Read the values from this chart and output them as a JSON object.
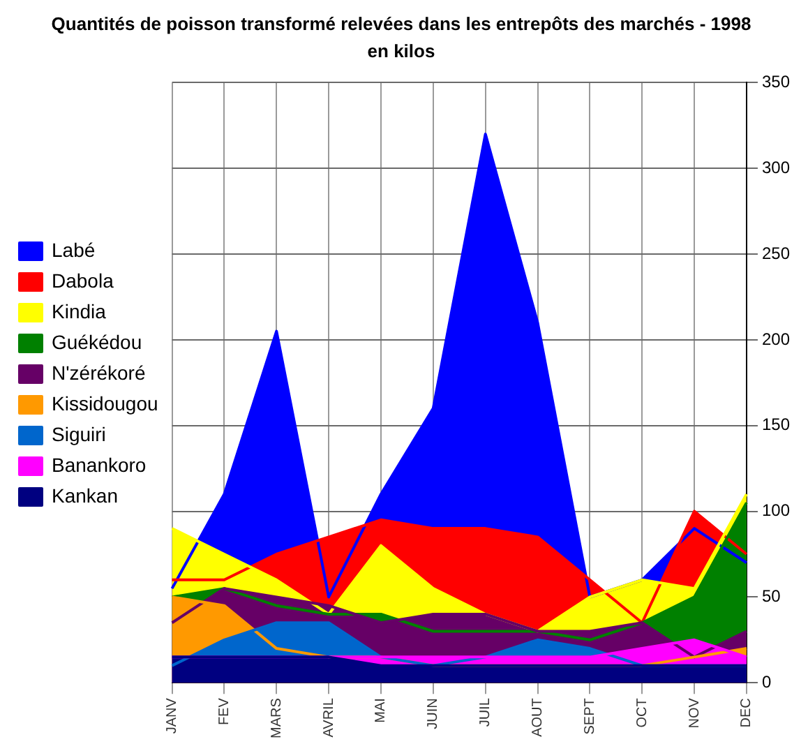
{
  "chart_data": {
    "type": "area",
    "title": "Quantités de poisson transformé relevées dans les entrepôts des marchés - 1998",
    "subtitle": "en kilos",
    "categories": [
      "JANV",
      "FEV",
      "MARS",
      "AVRIL",
      "MAI",
      "JUIN",
      "JUIL",
      "AOUT",
      "SEPT",
      "OCT",
      "NOV",
      "DEC"
    ],
    "series": [
      {
        "name": "Labé",
        "color": "#0000ff",
        "values": [
          55,
          110,
          205,
          50,
          110,
          160,
          320,
          210,
          50,
          60,
          90,
          70
        ]
      },
      {
        "name": "Dabola",
        "color": "#ff0000",
        "values": [
          60,
          60,
          75,
          85,
          95,
          90,
          90,
          85,
          60,
          35,
          100,
          75
        ]
      },
      {
        "name": "Kindia",
        "color": "#ffff00",
        "values": [
          90,
          75,
          60,
          40,
          80,
          55,
          40,
          30,
          50,
          60,
          55,
          110
        ]
      },
      {
        "name": "Guékédou",
        "color": "#008000",
        "values": [
          50,
          55,
          45,
          40,
          40,
          30,
          30,
          30,
          25,
          35,
          50,
          105
        ]
      },
      {
        "name": "N'zérékoré",
        "color": "#660066",
        "values": [
          35,
          55,
          50,
          45,
          35,
          40,
          40,
          30,
          30,
          35,
          15,
          30
        ]
      },
      {
        "name": "Kissidougou",
        "color": "#ff9900",
        "values": [
          50,
          45,
          20,
          15,
          15,
          10,
          10,
          10,
          10,
          10,
          15,
          20
        ]
      },
      {
        "name": "Siguiri",
        "color": "#0066cc",
        "values": [
          10,
          25,
          35,
          35,
          15,
          10,
          15,
          25,
          20,
          10,
          10,
          10
        ]
      },
      {
        "name": "Banankoro",
        "color": "#ff00ff",
        "values": [
          15,
          15,
          15,
          15,
          15,
          15,
          15,
          15,
          15,
          20,
          25,
          15
        ]
      },
      {
        "name": "Kankan",
        "color": "#000080",
        "values": [
          15,
          15,
          15,
          15,
          10,
          10,
          10,
          10,
          10,
          10,
          10,
          10
        ]
      }
    ],
    "ylim": [
      0,
      350
    ],
    "yticks": [
      0,
      50,
      100,
      150,
      200,
      250,
      300,
      350
    ],
    "grid": true,
    "legend": "left"
  }
}
